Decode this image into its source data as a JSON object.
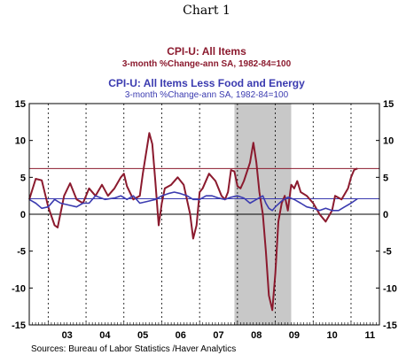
{
  "chart_data": {
    "type": "line",
    "title": "Chart 1",
    "legend": [
      {
        "title": "CPI-U: All Items",
        "subtitle": "3-month %Change-ann     SA, 1982-84=100"
      },
      {
        "title": "CPI-U: All Items Less Food and Energy",
        "subtitle": "3-month %Change-ann     SA, 1982-84=100"
      }
    ],
    "source": "Sources:  Bureau of Labor Statistics /Haver Analytics",
    "xlim": [
      2002.5,
      2011.75
    ],
    "ylim": [
      -15,
      15
    ],
    "y_ticks": [
      15,
      10,
      5,
      0,
      -5,
      -10,
      -15
    ],
    "y_tick_labels": [
      "15",
      "10",
      "5",
      "0",
      "-5",
      "-10",
      "-15"
    ],
    "x_tick_labels": [
      "03",
      "04",
      "05",
      "06",
      "07",
      "08",
      "09",
      "10",
      "11"
    ],
    "recession_shading": [
      2007.92,
      2009.42
    ],
    "reference_lines": [
      {
        "value": 6.2,
        "color": "#8b1a2e"
      },
      {
        "value": 2.1,
        "color": "#3b3bb0"
      }
    ],
    "series": [
      {
        "name": "CPI-U: All Items",
        "color": "#8b1a2e",
        "points": [
          [
            2002.5,
            2.0
          ],
          [
            2002.67,
            4.8
          ],
          [
            2002.83,
            4.6
          ],
          [
            2003.0,
            1.0
          ],
          [
            2003.17,
            -1.5
          ],
          [
            2003.25,
            -1.8
          ],
          [
            2003.42,
            2.5
          ],
          [
            2003.58,
            4.2
          ],
          [
            2003.75,
            2.0
          ],
          [
            2003.92,
            1.5
          ],
          [
            2004.08,
            3.5
          ],
          [
            2004.25,
            2.5
          ],
          [
            2004.42,
            4.0
          ],
          [
            2004.58,
            2.5
          ],
          [
            2004.75,
            3.5
          ],
          [
            2004.92,
            5.0
          ],
          [
            2005.0,
            5.5
          ],
          [
            2005.08,
            3.8
          ],
          [
            2005.25,
            2.0
          ],
          [
            2005.42,
            2.5
          ],
          [
            2005.5,
            5.5
          ],
          [
            2005.67,
            11.0
          ],
          [
            2005.75,
            9.5
          ],
          [
            2005.83,
            4.5
          ],
          [
            2005.92,
            -1.5
          ],
          [
            2006.0,
            1.5
          ],
          [
            2006.08,
            3.5
          ],
          [
            2006.25,
            4.0
          ],
          [
            2006.42,
            5.0
          ],
          [
            2006.58,
            4.0
          ],
          [
            2006.75,
            0.0
          ],
          [
            2006.83,
            -3.3
          ],
          [
            2006.92,
            -1.5
          ],
          [
            2007.0,
            3.0
          ],
          [
            2007.08,
            3.5
          ],
          [
            2007.25,
            5.5
          ],
          [
            2007.42,
            4.5
          ],
          [
            2007.58,
            2.5
          ],
          [
            2007.67,
            2.0
          ],
          [
            2007.75,
            3.0
          ],
          [
            2007.83,
            6.0
          ],
          [
            2007.92,
            5.8
          ],
          [
            2008.0,
            3.8
          ],
          [
            2008.08,
            3.5
          ],
          [
            2008.17,
            4.5
          ],
          [
            2008.33,
            7.0
          ],
          [
            2008.42,
            9.7
          ],
          [
            2008.5,
            7.0
          ],
          [
            2008.58,
            3.0
          ],
          [
            2008.67,
            0.0
          ],
          [
            2008.75,
            -5.0
          ],
          [
            2008.83,
            -11.0
          ],
          [
            2008.92,
            -13.0
          ],
          [
            2009.0,
            -8.0
          ],
          [
            2009.08,
            -1.0
          ],
          [
            2009.17,
            1.5
          ],
          [
            2009.25,
            2.5
          ],
          [
            2009.33,
            0.5
          ],
          [
            2009.42,
            4.0
          ],
          [
            2009.5,
            3.5
          ],
          [
            2009.58,
            4.5
          ],
          [
            2009.67,
            3.0
          ],
          [
            2009.83,
            2.5
          ],
          [
            2010.0,
            1.5
          ],
          [
            2010.17,
            0.0
          ],
          [
            2010.33,
            -1.0
          ],
          [
            2010.5,
            0.5
          ],
          [
            2010.58,
            2.5
          ],
          [
            2010.75,
            2.0
          ],
          [
            2010.92,
            3.5
          ],
          [
            2011.0,
            5.0
          ],
          [
            2011.08,
            6.0
          ],
          [
            2011.17,
            6.2
          ]
        ]
      },
      {
        "name": "CPI-U: All Items Less Food and Energy",
        "color": "#3b3bb0",
        "points": [
          [
            2002.5,
            2.0
          ],
          [
            2002.67,
            1.5
          ],
          [
            2002.83,
            0.8
          ],
          [
            2003.0,
            1.0
          ],
          [
            2003.17,
            2.0
          ],
          [
            2003.33,
            1.5
          ],
          [
            2003.58,
            1.2
          ],
          [
            2003.75,
            1.0
          ],
          [
            2003.92,
            1.5
          ],
          [
            2004.08,
            1.5
          ],
          [
            2004.25,
            2.5
          ],
          [
            2004.5,
            2.0
          ],
          [
            2004.75,
            2.2
          ],
          [
            2004.92,
            2.5
          ],
          [
            2005.08,
            2.0
          ],
          [
            2005.25,
            2.5
          ],
          [
            2005.42,
            1.5
          ],
          [
            2005.67,
            1.8
          ],
          [
            2005.83,
            2.0
          ],
          [
            2006.0,
            2.5
          ],
          [
            2006.17,
            2.8
          ],
          [
            2006.33,
            3.0
          ],
          [
            2006.5,
            2.8
          ],
          [
            2006.67,
            2.5
          ],
          [
            2006.83,
            2.0
          ],
          [
            2007.0,
            2.0
          ],
          [
            2007.17,
            2.5
          ],
          [
            2007.33,
            2.5
          ],
          [
            2007.5,
            2.2
          ],
          [
            2007.67,
            2.0
          ],
          [
            2007.83,
            2.3
          ],
          [
            2008.0,
            2.5
          ],
          [
            2008.17,
            2.2
          ],
          [
            2008.33,
            1.5
          ],
          [
            2008.5,
            2.0
          ],
          [
            2008.67,
            2.5
          ],
          [
            2008.75,
            1.5
          ],
          [
            2008.83,
            0.8
          ],
          [
            2008.92,
            0.5
          ],
          [
            2009.0,
            1.0
          ],
          [
            2009.17,
            1.8
          ],
          [
            2009.33,
            2.3
          ],
          [
            2009.5,
            2.0
          ],
          [
            2009.67,
            1.5
          ],
          [
            2009.83,
            1.0
          ],
          [
            2010.0,
            0.8
          ],
          [
            2010.17,
            0.5
          ],
          [
            2010.33,
            0.8
          ],
          [
            2010.5,
            0.5
          ],
          [
            2010.67,
            0.5
          ],
          [
            2010.83,
            1.0
          ],
          [
            2011.0,
            1.5
          ],
          [
            2011.17,
            2.1
          ]
        ]
      }
    ]
  }
}
